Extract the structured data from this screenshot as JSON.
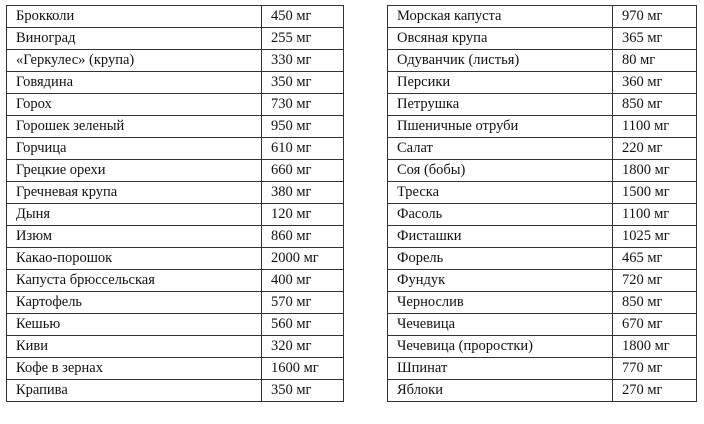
{
  "left": {
    "rows": [
      [
        "Брокколи",
        "450 мг"
      ],
      [
        "Виноград",
        "255 мг"
      ],
      [
        "«Геркулес» (крупа)",
        "330 мг"
      ],
      [
        "Говядина",
        "350 мг"
      ],
      [
        "Горох",
        "730 мг"
      ],
      [
        "Горошек зеленый",
        "950 мг"
      ],
      [
        "Горчица",
        "610 мг"
      ],
      [
        "Грецкие орехи",
        "660 мг"
      ],
      [
        "Гречневая крупа",
        "380 мг"
      ],
      [
        "Дыня",
        "120 мг"
      ],
      [
        "Изюм",
        "860 мг"
      ],
      [
        "Какао-порошок",
        "2000 мг"
      ],
      [
        "Капуста брюссельская",
        "400 мг"
      ],
      [
        "Картофель",
        "570 мг"
      ],
      [
        "Кешью",
        "560 мг"
      ],
      [
        "Киви",
        "320 мг"
      ],
      [
        "Кофе в зернах",
        "1600 мг"
      ],
      [
        "Крапива",
        "350 мг"
      ]
    ]
  },
  "right": {
    "rows": [
      [
        "Морская капуста",
        "970 мг"
      ],
      [
        "Овсяная крупа",
        "365 мг"
      ],
      [
        "Одуванчик (листья)",
        "80 мг"
      ],
      [
        "Персики",
        "360 мг"
      ],
      [
        "Петрушка",
        "850 мг"
      ],
      [
        "Пшеничные отруби",
        "1100 мг"
      ],
      [
        "Салат",
        "220 мг"
      ],
      [
        "Соя (бобы)",
        "1800 мг"
      ],
      [
        "Треска",
        "1500 мг"
      ],
      [
        "Фасоль",
        "1100 мг"
      ],
      [
        "Фисташки",
        "1025 мг"
      ],
      [
        "Форель",
        "465 мг"
      ],
      [
        "Фундук",
        "720 мг"
      ],
      [
        "Чернослив",
        "850 мг"
      ],
      [
        "Чечевица",
        "670 мг"
      ],
      [
        "Чечевица (проростки)",
        "1800 мг"
      ],
      [
        "Шпинат",
        "770 мг"
      ],
      [
        "Яблоки",
        "270 мг"
      ]
    ]
  }
}
